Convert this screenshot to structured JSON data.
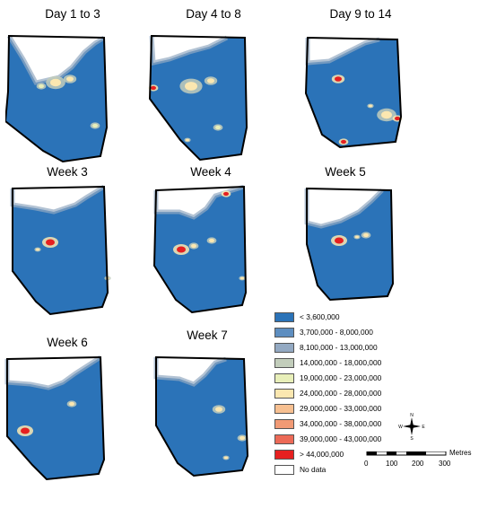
{
  "panels": [
    {
      "title": "Day 1 to 3"
    },
    {
      "title": "Day 4 to 8"
    },
    {
      "title": "Day 9 to 14"
    },
    {
      "title": "Week 3"
    },
    {
      "title": "Week 4"
    },
    {
      "title": "Week 5"
    },
    {
      "title": "Week 6"
    },
    {
      "title": "Week 7"
    }
  ],
  "legend": [
    {
      "label": "< 3,600,000",
      "color": "#2b73b8"
    },
    {
      "label": "3,700,000 - 8,000,000",
      "color": "#5e8ec0"
    },
    {
      "label": "8,100,000 - 13,000,000",
      "color": "#93a9c2"
    },
    {
      "label": "14,000,000 - 18,000,000",
      "color": "#c2cdbb"
    },
    {
      "label": "19,000,000 - 23,000,000",
      "color": "#e8efb9"
    },
    {
      "label": "24,000,000 - 28,000,000",
      "color": "#fbe7b0"
    },
    {
      "label": "29,000,000 - 33,000,000",
      "color": "#f7c091"
    },
    {
      "label": "34,000,000 - 38,000,000",
      "color": "#f19a75"
    },
    {
      "label": "39,000,000 - 43,000,000",
      "color": "#ec6a57"
    },
    {
      "label": "> 44,000,000",
      "color": "#e62020"
    },
    {
      "label": "No data",
      "color": "#ffffff"
    }
  ],
  "north_arrow": {
    "n": "N",
    "s": "S",
    "e": "E",
    "w": "W"
  },
  "scale": {
    "ticks": [
      "0",
      "100",
      "200",
      "300"
    ],
    "unit": "Metres"
  }
}
